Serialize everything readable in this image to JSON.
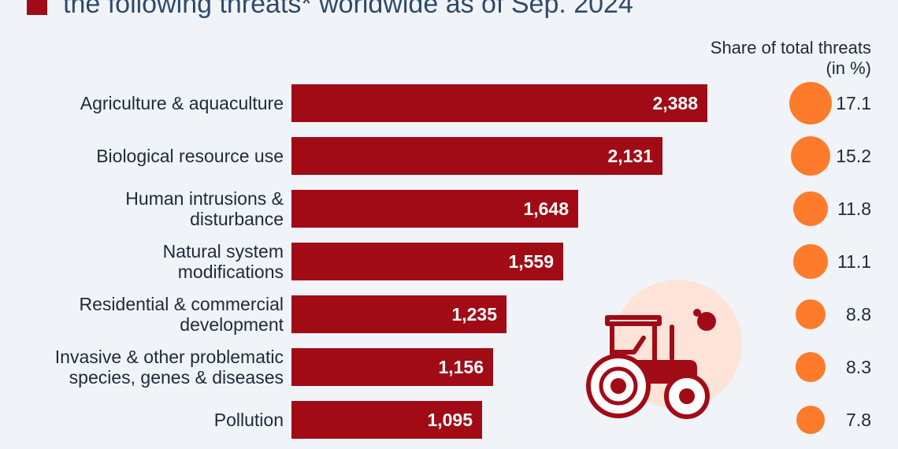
{
  "header": {
    "title_visible_line": "the following threats* worldwide as of Sep. 2024",
    "share_column_head": [
      "Share of total threats",
      "(in %)"
    ]
  },
  "colors": {
    "bar": "#a10b16",
    "bubble": "#ff7b2c",
    "background": "#f0f4f8",
    "illustration_circle": "#fde3d8"
  },
  "illustration": {
    "icon": "tractor-icon"
  },
  "chart_data": {
    "type": "bar",
    "orientation": "horizontal",
    "categories": [
      [
        "Agriculture & aquaculture"
      ],
      [
        "Biological resource use"
      ],
      [
        "Human intrusions &",
        "disturbance"
      ],
      [
        "Natural system",
        "modifications"
      ],
      [
        "Residential & commercial",
        "development"
      ],
      [
        "Invasive & other problematic",
        "species, genes & diseases"
      ],
      [
        "Pollution"
      ]
    ],
    "values": [
      2388,
      2131,
      1648,
      1559,
      1235,
      1156,
      1095
    ],
    "value_labels": [
      "2,388",
      "2,131",
      "1,648",
      "1,559",
      "1,235",
      "1,156",
      "1,095"
    ],
    "share_pct": [
      17.1,
      15.2,
      11.8,
      11.1,
      8.8,
      8.3,
      7.8
    ],
    "share_labels": [
      "17.1",
      "15.2",
      "11.8",
      "11.1",
      "8.8",
      "8.3",
      "7.8"
    ]
  }
}
